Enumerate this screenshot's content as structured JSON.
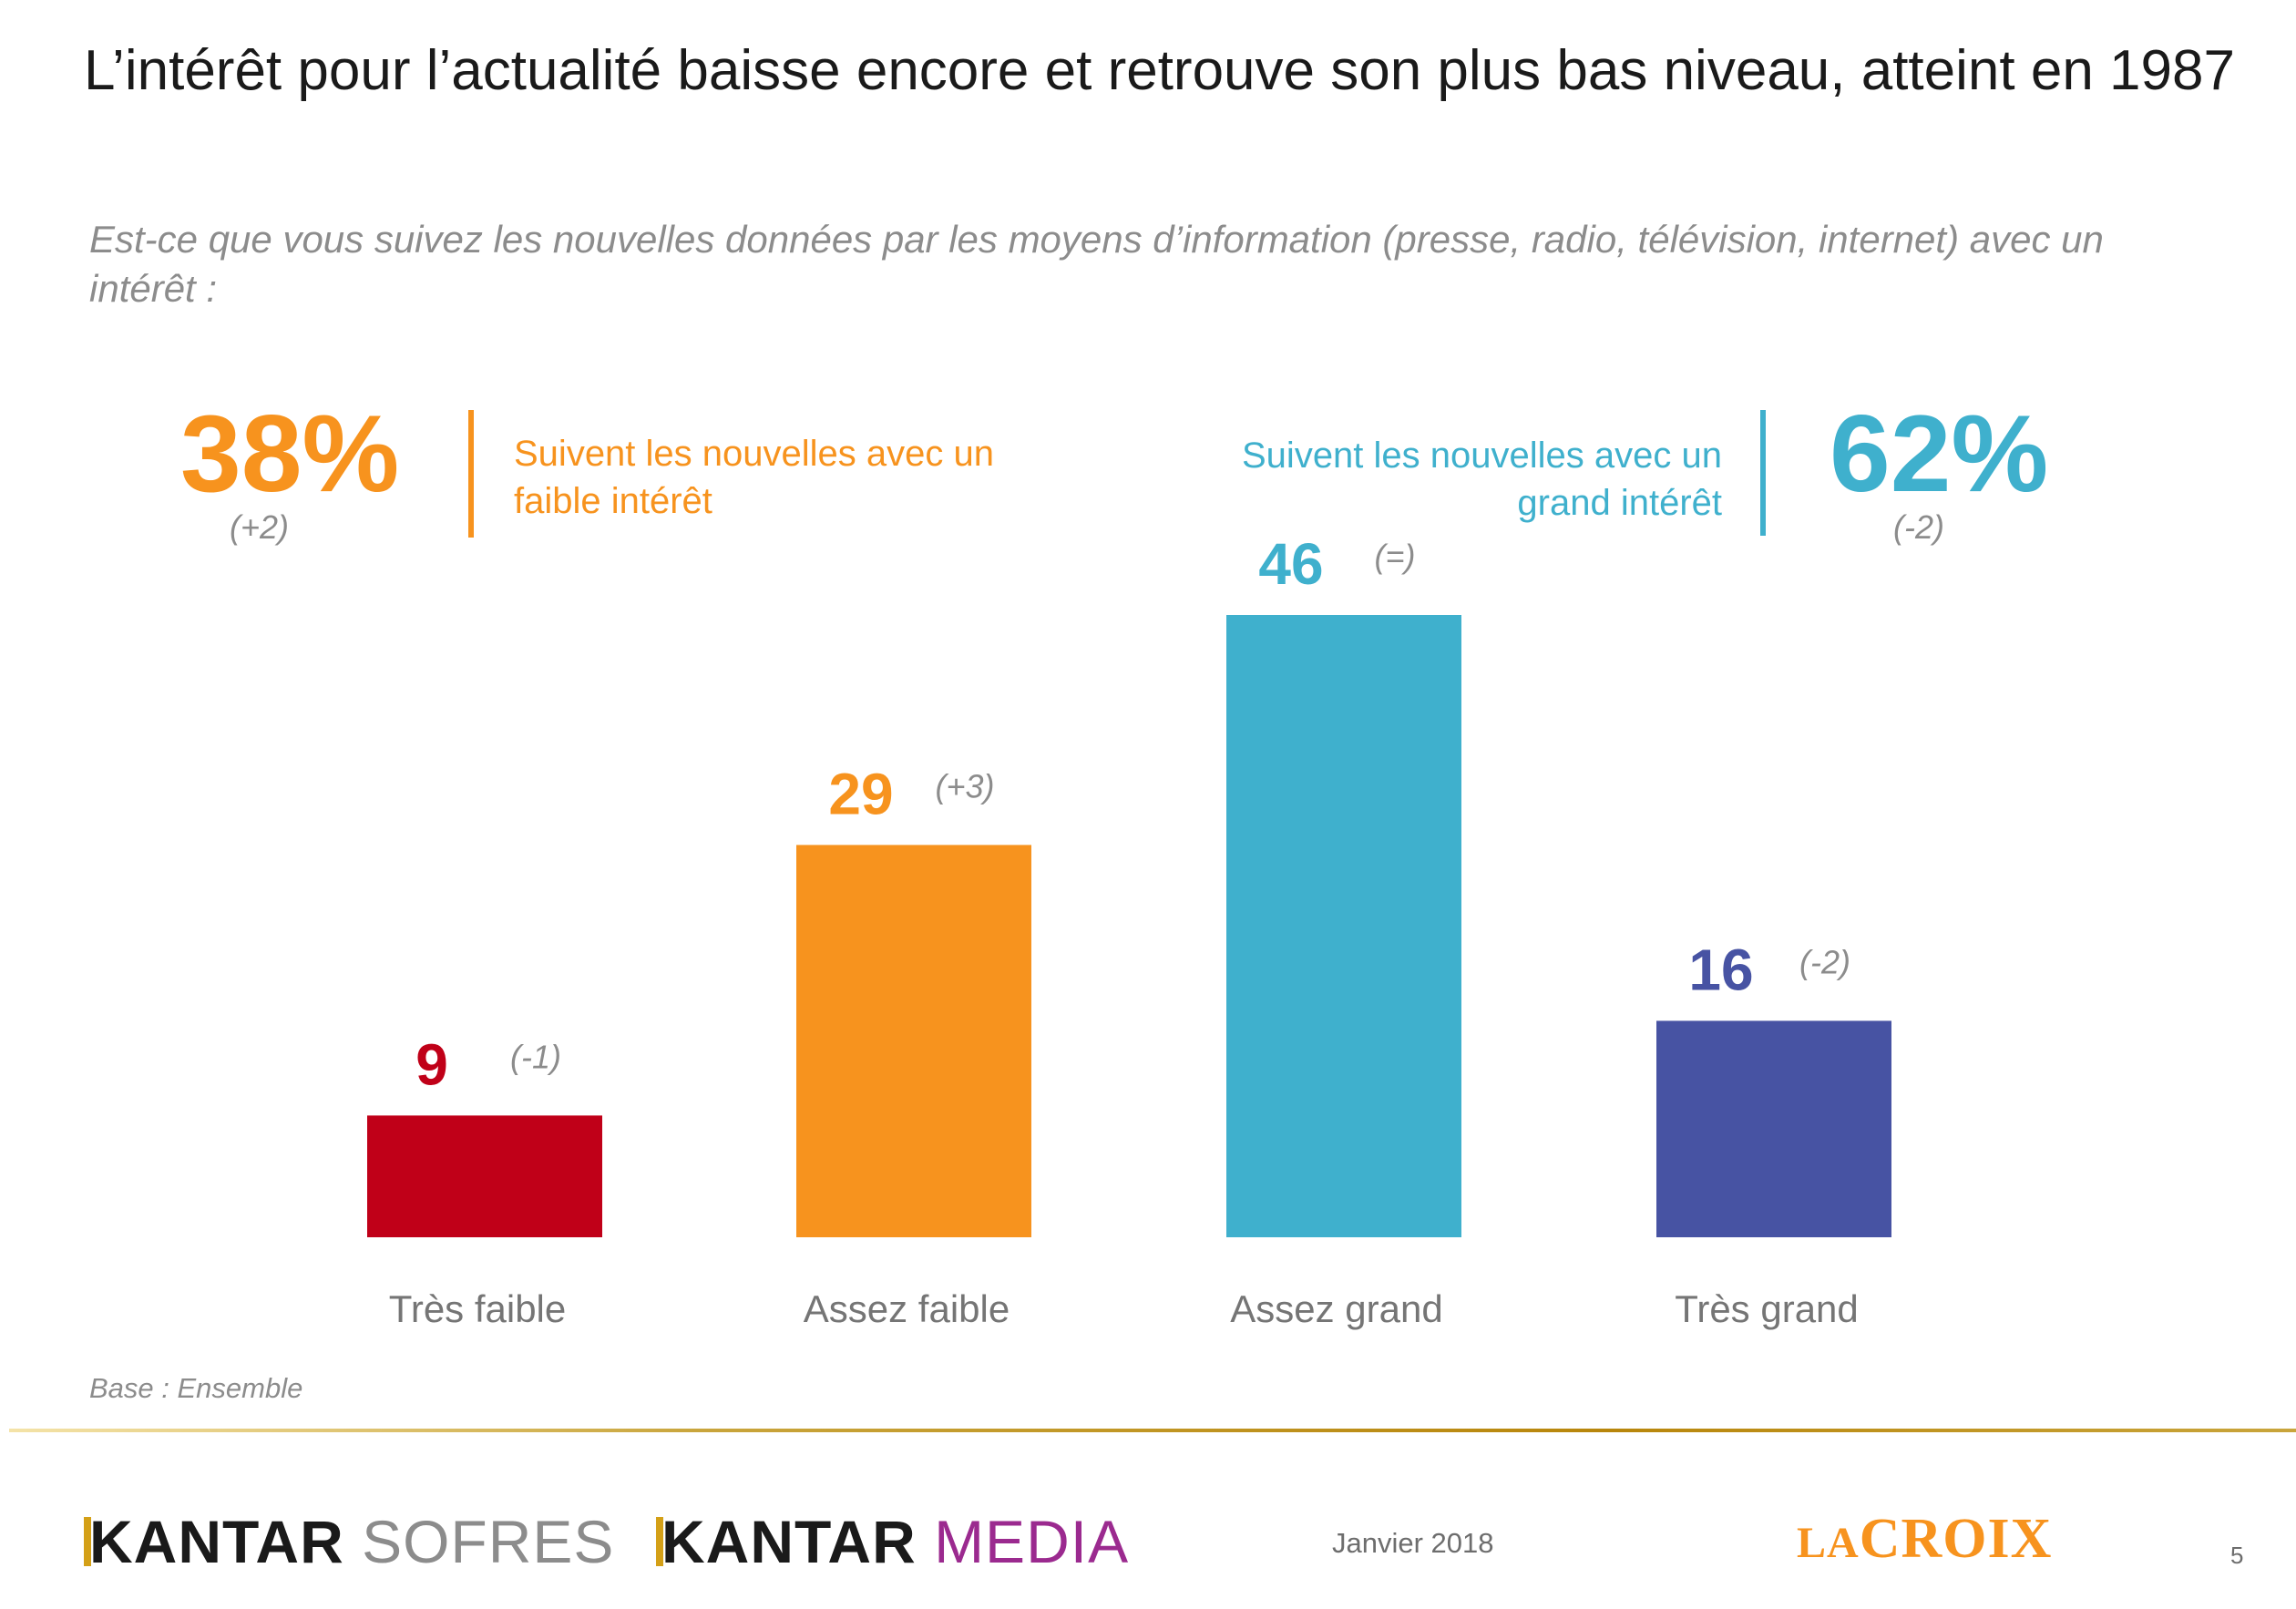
{
  "title": "L’intérêt pour l’actualité baisse encore et retrouve son plus bas niveau, atteint en 1987",
  "question": "Est-ce que vous suivez les nouvelles données par les moyens d’information (presse, radio, télévision, internet) avec un intérêt :",
  "summary_low": {
    "pct": "38%",
    "change": "(+2)",
    "label_line1": "Suivent les nouvelles avec un",
    "label_line2": "faible intérêt",
    "color": "#f7931e"
  },
  "summary_high": {
    "pct": "62%",
    "change": "(-2)",
    "label_line1": "Suivent les nouvelles avec un",
    "label_line2": "grand intérêt",
    "color": "#3fb0cd"
  },
  "chart_data": {
    "type": "bar",
    "categories": [
      "Très faible",
      "Assez faible",
      "Assez grand",
      "Très grand"
    ],
    "values": [
      9,
      29,
      46,
      16
    ],
    "changes": [
      "(-1)",
      "(+3)",
      "(=)",
      "(-2)"
    ],
    "colors": [
      "#c00018",
      "#f7931e",
      "#3fb0cd",
      "#4753a3"
    ],
    "ylim": [
      0,
      46
    ],
    "grid": false,
    "title": "",
    "xlabel": "",
    "ylabel": ""
  },
  "base_note": "Base : Ensemble",
  "footer": {
    "kantar_sofres_a": "KANTAR",
    "kantar_sofres_b": "SOFRES",
    "kantar_media_a": "KANTAR",
    "kantar_media_b": "MEDIA",
    "date": "Janvier 2018",
    "lacroix_la": "LA",
    "lacroix_croix": "CROIX",
    "page_number": "5"
  }
}
